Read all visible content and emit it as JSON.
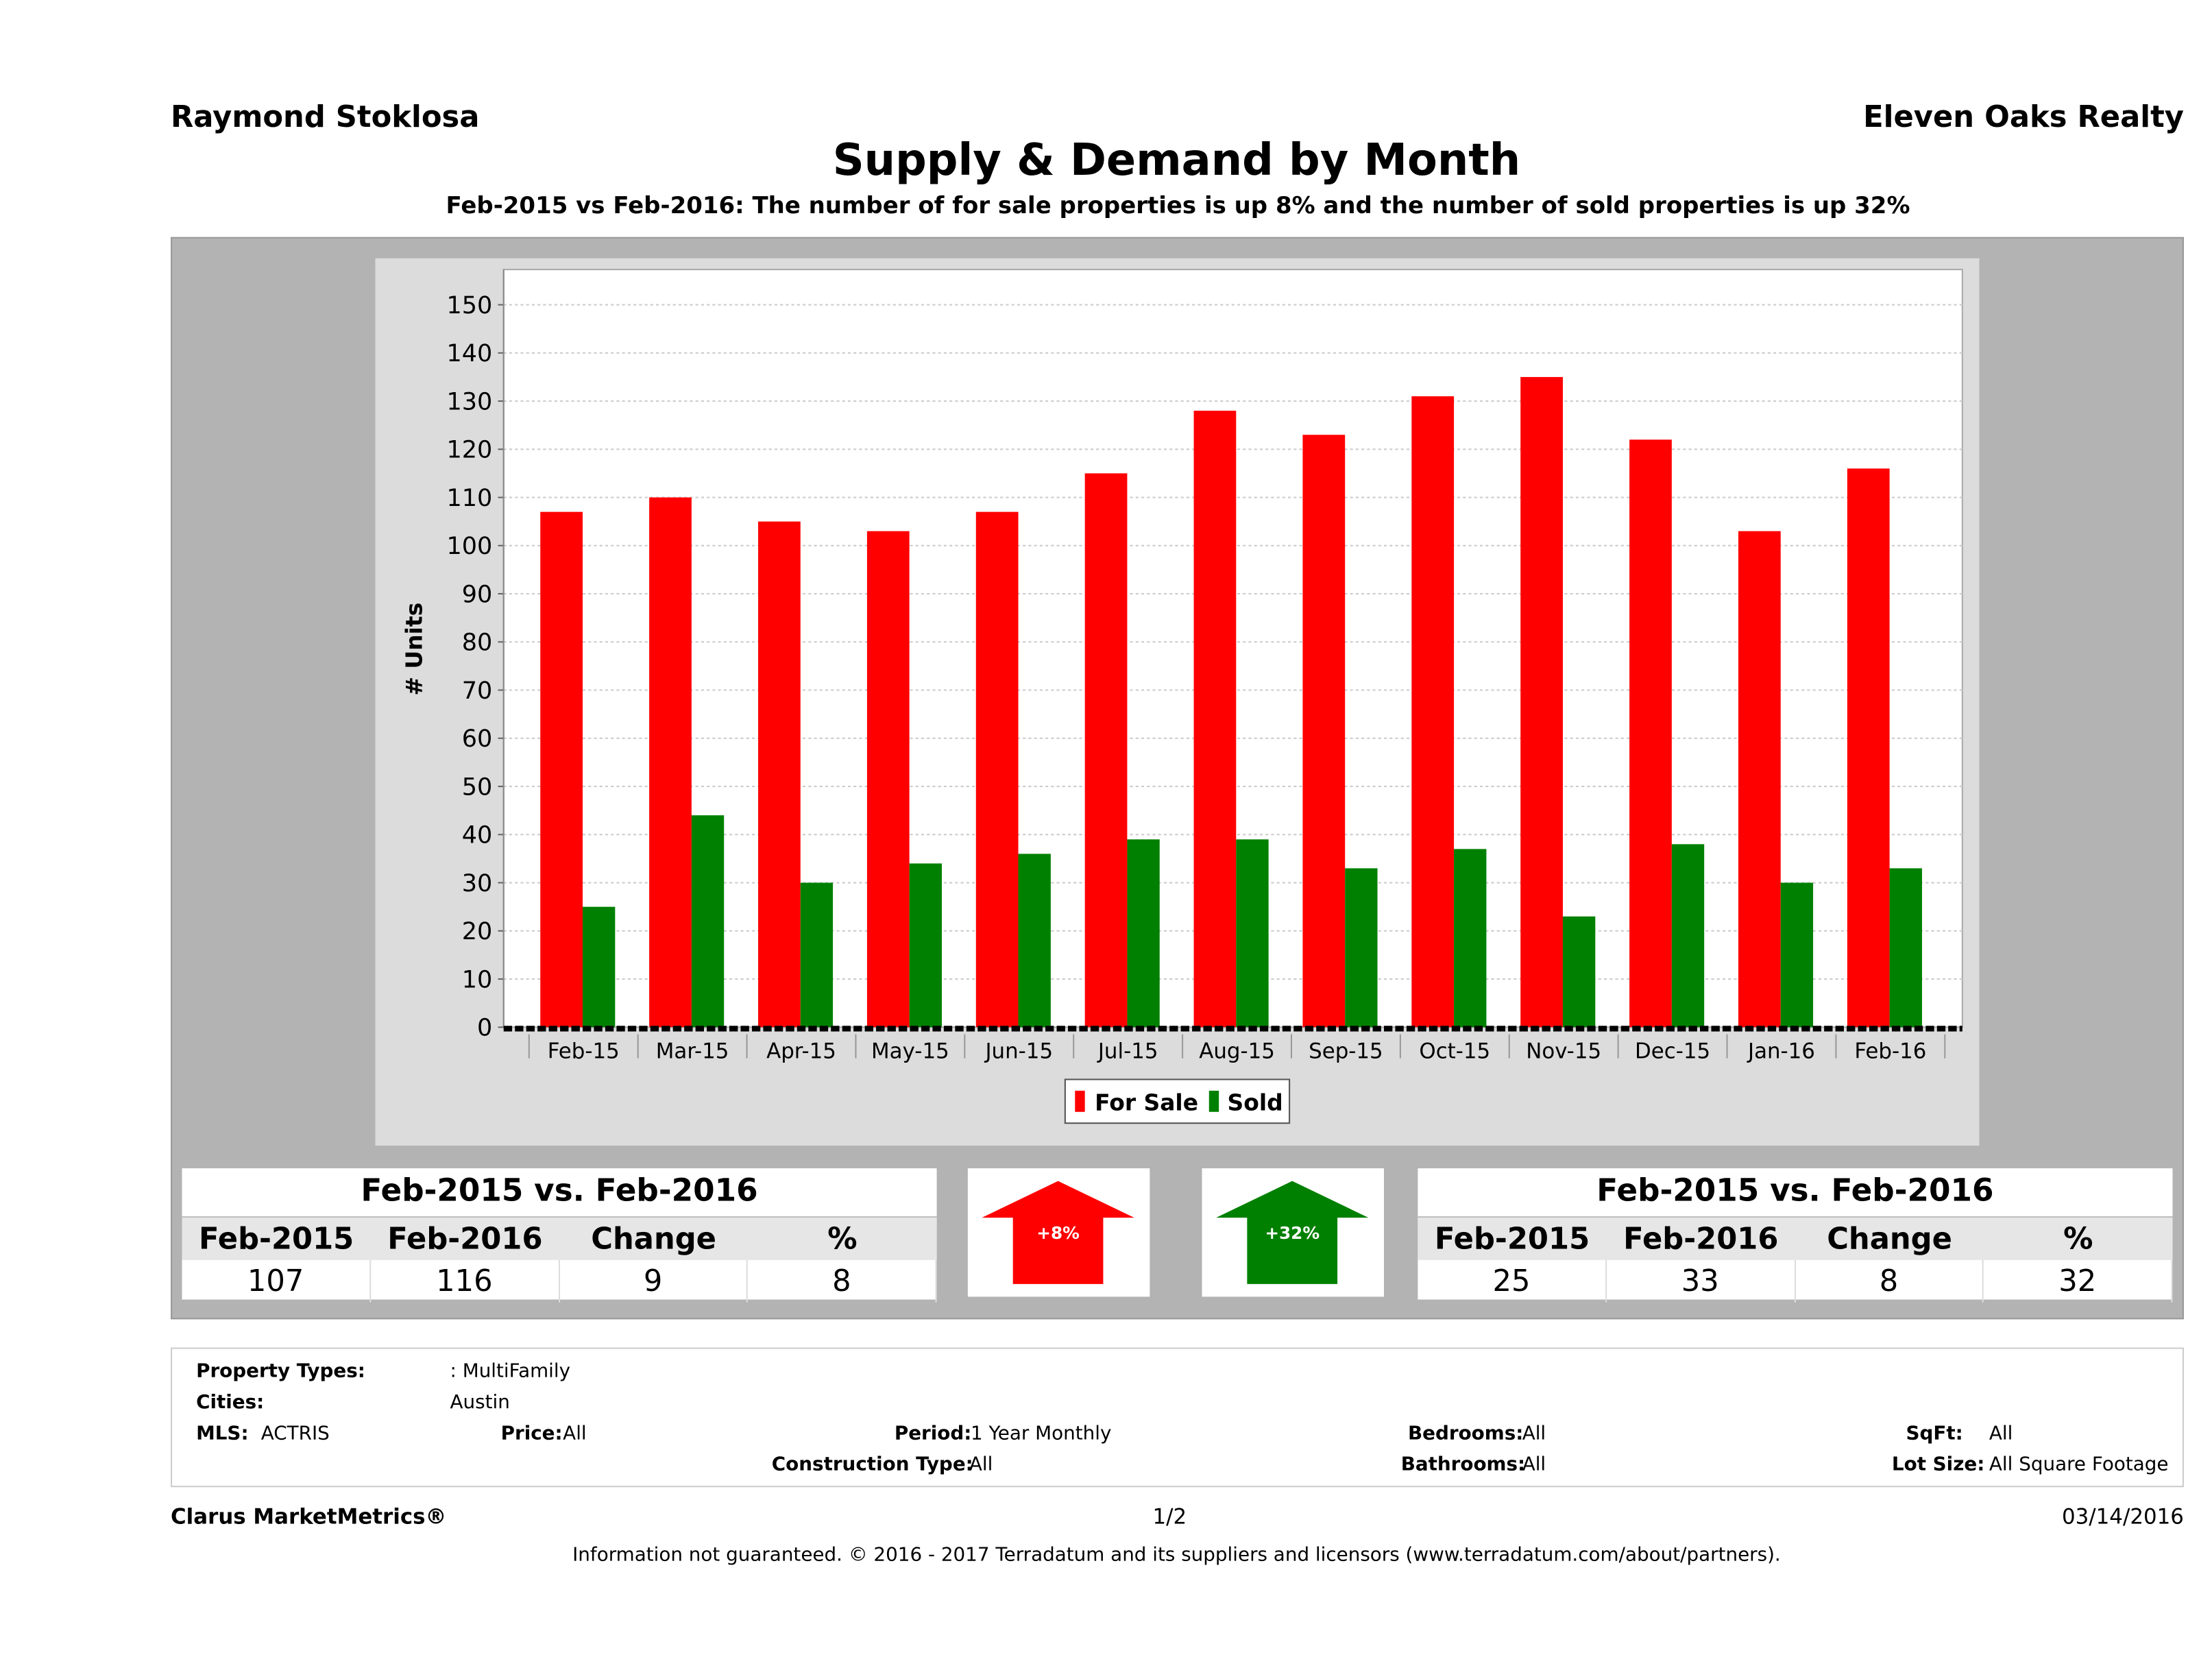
{
  "header": {
    "agent": "Raymond Stoklosa",
    "brokerage": "Eleven Oaks Realty",
    "title": "Supply & Demand by Month",
    "subtitle": "Feb-2015 vs Feb-2016: The number of for sale properties is up 8% and the number of sold properties is up 32%"
  },
  "chart_data": {
    "type": "bar",
    "ylabel": "# Units",
    "xlabel": "",
    "ylim": [
      0,
      150
    ],
    "yticks": [
      0,
      10,
      20,
      30,
      40,
      50,
      60,
      70,
      80,
      90,
      100,
      110,
      120,
      130,
      140,
      150
    ],
    "grid": true,
    "legend_position": "bottom",
    "categories": [
      "Feb-15",
      "Mar-15",
      "Apr-15",
      "May-15",
      "Jun-15",
      "Jul-15",
      "Aug-15",
      "Sep-15",
      "Oct-15",
      "Nov-15",
      "Dec-15",
      "Jan-16",
      "Feb-16"
    ],
    "series": [
      {
        "name": "For Sale",
        "color": "#ff0000",
        "values": [
          107,
          110,
          105,
          103,
          107,
          115,
          128,
          123,
          131,
          135,
          122,
          103,
          116
        ]
      },
      {
        "name": "Sold",
        "color": "#008000",
        "values": [
          25,
          44,
          30,
          34,
          36,
          39,
          39,
          33,
          37,
          23,
          38,
          30,
          33
        ]
      }
    ]
  },
  "for_sale_table": {
    "title": "Feb-2015 vs. Feb-2016",
    "headers": [
      "Feb-2015",
      "Feb-2016",
      "Change",
      "%"
    ],
    "values": [
      "107",
      "116",
      "9",
      "8"
    ],
    "arrow": "+8%",
    "arrow_color": "#ff0000"
  },
  "sold_table": {
    "title": "Feb-2015 vs. Feb-2016",
    "headers": [
      "Feb-2015",
      "Feb-2016",
      "Change",
      "%"
    ],
    "values": [
      "25",
      "33",
      "8",
      "32"
    ],
    "arrow": "+32%",
    "arrow_color": "#008000"
  },
  "info": {
    "property_types_label": "Property Types:",
    "property_types": ": MultiFamily",
    "cities_label": "Cities:",
    "cities": "Austin",
    "mls_label": "MLS:",
    "mls": "ACTRIS",
    "price_label": "Price:",
    "price": "All",
    "period_label": "Period:",
    "period": "1 Year Monthly",
    "construction_label": "Construction Type:",
    "construction": "All",
    "bedrooms_label": "Bedrooms:",
    "bedrooms": "All",
    "bathrooms_label": "Bathrooms:",
    "bathrooms": "All",
    "sqft_label": "SqFt:",
    "sqft": "All",
    "lot_label": "Lot Size:",
    "lot": "All Square Footage"
  },
  "footer": {
    "brand": "Clarus MarketMetrics®",
    "page": "1/2",
    "date": "03/14/2016",
    "disclaimer": "Information not guaranteed. © 2016 - 2017 Terradatum and its suppliers and licensors (www.terradatum.com/about/partners)."
  }
}
